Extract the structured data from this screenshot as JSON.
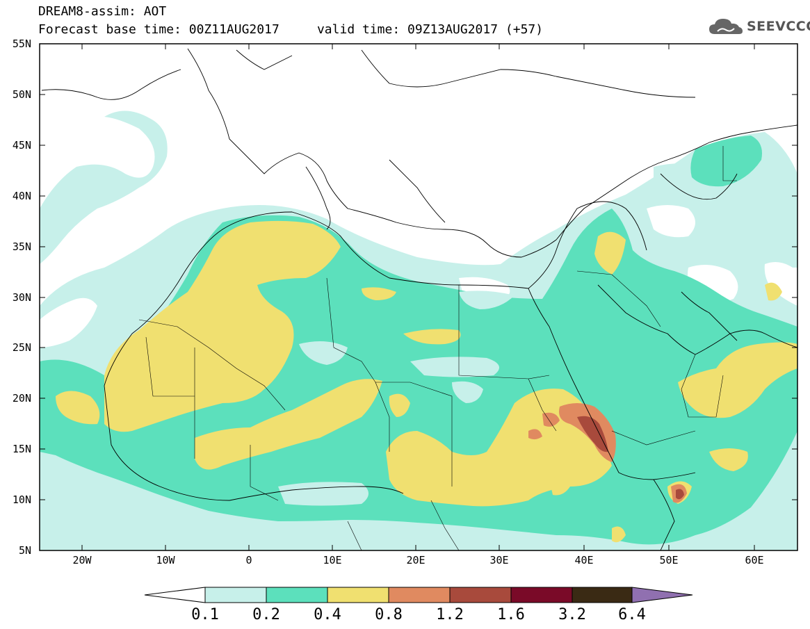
{
  "header": {
    "title_line1": "DREAM8-assim: AOT",
    "title_line2": "Forecast base time: 00Z11AUG2017     valid time: 09Z13AUG2017 (+57)"
  },
  "logo": {
    "text": "SEEVCCC",
    "icon": "cloud-icon"
  },
  "map": {
    "lon_range": [
      -25,
      65
    ],
    "lat_range": [
      5,
      55
    ],
    "lat_ticks": [
      "55N",
      "50N",
      "45N",
      "40N",
      "35N",
      "30N",
      "25N",
      "20N",
      "15N",
      "10N",
      "5N"
    ],
    "lon_ticks": [
      "20W",
      "10W",
      "0",
      "10E",
      "20E",
      "30E",
      "40E",
      "50E",
      "60E"
    ]
  },
  "colorbar": {
    "labels": [
      "0.1",
      "0.2",
      "0.4",
      "0.8",
      "1.2",
      "1.6",
      "3.2",
      "6.4"
    ],
    "colors": [
      "#c7f0ea",
      "#5ce0bc",
      "#f0e070",
      "#e08a60",
      "#a84a3c",
      "#7a0a28",
      "#3a2a14",
      "#9070b0"
    ]
  },
  "colors": {
    "level_0_1": "#c7f0ea",
    "level_0_2": "#5ce0bc",
    "level_0_4": "#f0e070",
    "level_0_8": "#e08a60",
    "level_1_2": "#a84a3c",
    "level_1_6": "#7a0a28"
  }
}
